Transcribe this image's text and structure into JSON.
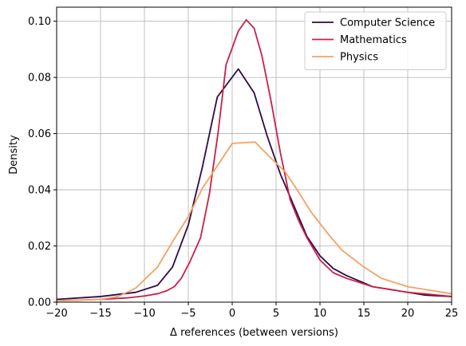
{
  "chart_data": {
    "type": "line",
    "xlabel": "Δ references (between versions)",
    "ylabel": "Density",
    "xlim": [
      -20,
      25
    ],
    "ylim": [
      0,
      0.105
    ],
    "xticks": [
      -20,
      -15,
      -10,
      -5,
      0,
      5,
      10,
      15,
      20,
      25
    ],
    "yticks": [
      0.0,
      0.02,
      0.04,
      0.06,
      0.08,
      0.1
    ],
    "xtick_labels": [
      "−20",
      "−15",
      "−10",
      "−5",
      "0",
      "5",
      "10",
      "15",
      "20",
      "25"
    ],
    "ytick_labels": [
      "0.00",
      "0.02",
      "0.04",
      "0.06",
      "0.08",
      "0.10"
    ],
    "grid": true,
    "legend_position": "top-right",
    "series": [
      {
        "name": "Computer Science",
        "color": "#2d0a4a",
        "x": [
          -20,
          -15,
          -11,
          -8.5,
          -6.8,
          -5,
          -3.4,
          -1.7,
          0.7,
          2.5,
          4,
          5.5,
          6.8,
          8.5,
          10,
          11.5,
          13,
          14.5,
          16,
          18,
          20,
          22,
          25
        ],
        "y": [
          0.001,
          0.002,
          0.0035,
          0.006,
          0.0125,
          0.0275,
          0.048,
          0.073,
          0.083,
          0.0745,
          0.059,
          0.0455,
          0.036,
          0.0235,
          0.0165,
          0.012,
          0.0095,
          0.0075,
          0.0055,
          0.0045,
          0.0035,
          0.0025,
          0.002
        ]
      },
      {
        "name": "Mathematics",
        "color": "#cc1f46",
        "x": [
          -20,
          -15,
          -12,
          -10,
          -8.5,
          -7.5,
          -6.6,
          -5.8,
          -4.8,
          -3.6,
          -2.6,
          -1.6,
          -0.7,
          0.7,
          1.6,
          2.5,
          3.4,
          4.4,
          5.5,
          6.6,
          7.5,
          8.5,
          10,
          11.5,
          13,
          14.5,
          16,
          18,
          20,
          22.5,
          25
        ],
        "y": [
          0.0005,
          0.001,
          0.0015,
          0.0022,
          0.003,
          0.004,
          0.0055,
          0.0085,
          0.0145,
          0.023,
          0.0385,
          0.0605,
          0.0845,
          0.0965,
          0.1005,
          0.0975,
          0.0875,
          0.072,
          0.053,
          0.0365,
          0.0295,
          0.023,
          0.015,
          0.0105,
          0.0085,
          0.007,
          0.0055,
          0.0045,
          0.0035,
          0.0028,
          0.002
        ]
      },
      {
        "name": "Physics",
        "color": "#f4a261",
        "x": [
          -20,
          -15,
          -13,
          -11,
          -8.5,
          -6.8,
          -5,
          -3.4,
          -1.7,
          0,
          2.6,
          4.5,
          6,
          7.5,
          9,
          11,
          12.5,
          15,
          17,
          20,
          22,
          25
        ],
        "y": [
          0.0005,
          0.001,
          0.002,
          0.005,
          0.0125,
          0.0215,
          0.0305,
          0.0405,
          0.0485,
          0.0565,
          0.057,
          0.051,
          0.0465,
          0.0395,
          0.032,
          0.024,
          0.0185,
          0.0125,
          0.0085,
          0.0055,
          0.0045,
          0.003
        ]
      }
    ]
  }
}
